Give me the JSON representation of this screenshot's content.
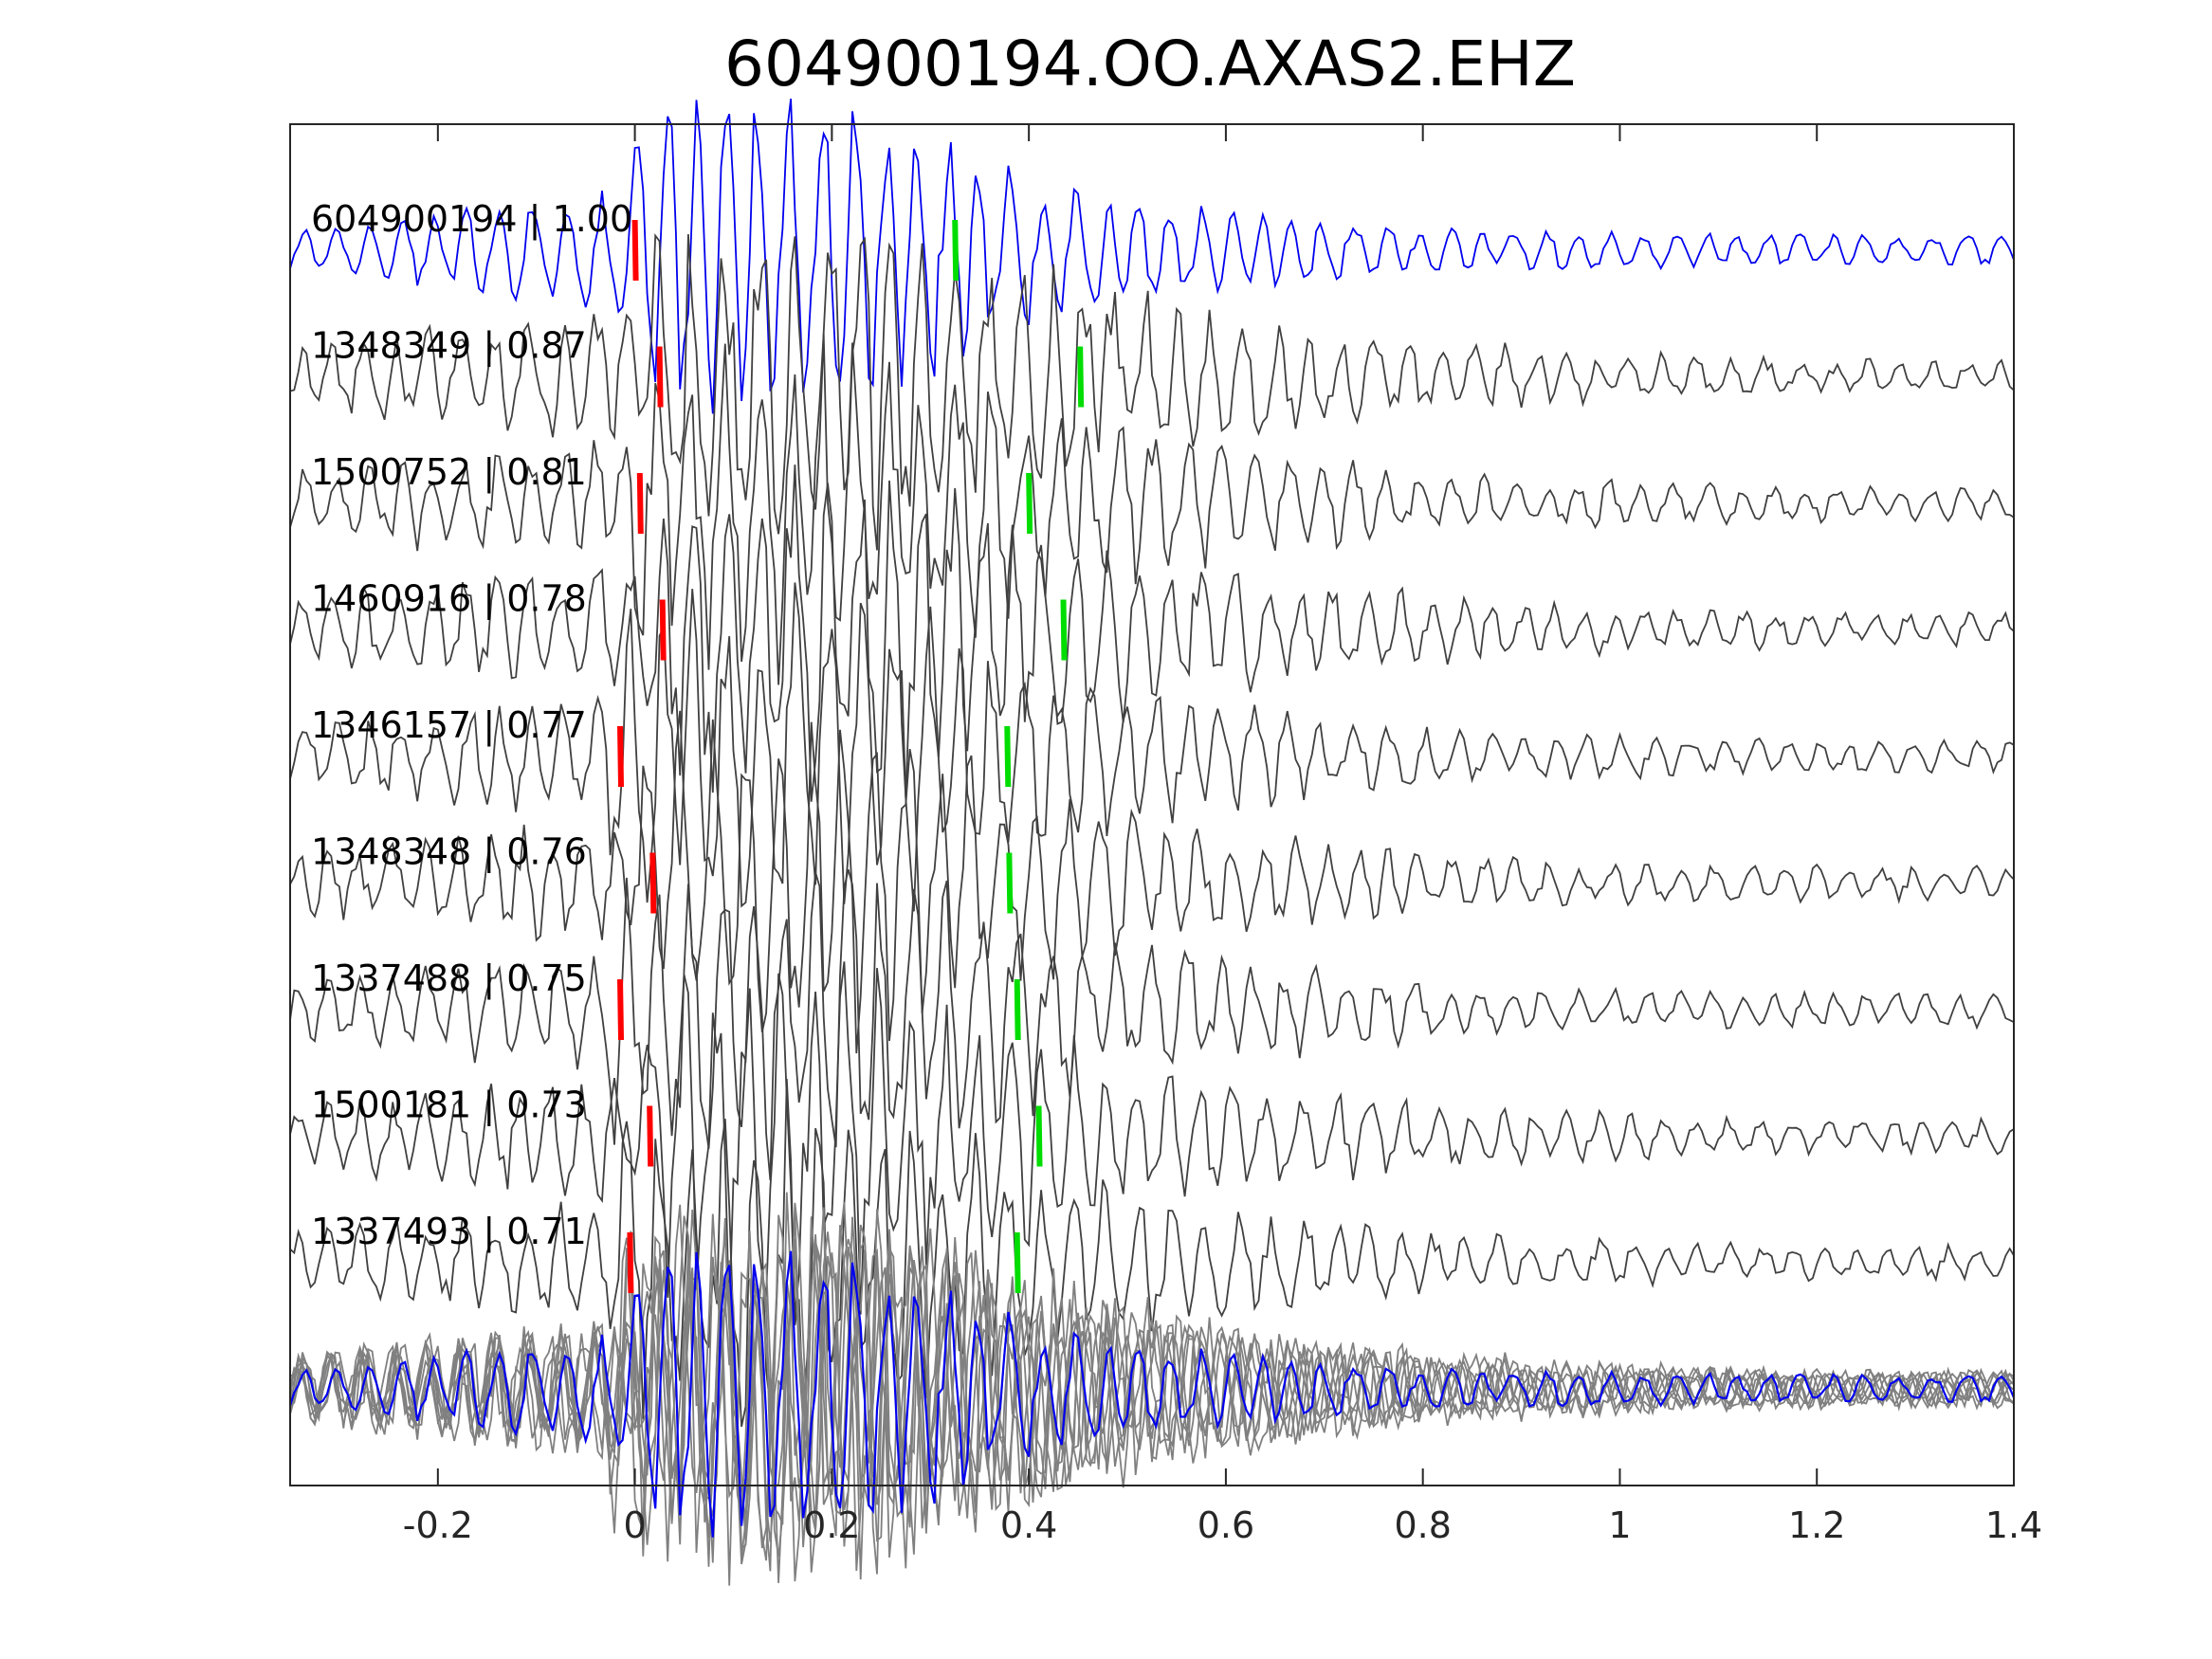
{
  "chart_data": {
    "type": "line",
    "title": "604900194.OO.AXAS2.EHZ",
    "xlabel": "",
    "ylabel": "",
    "xlim": [
      -0.35,
      1.4
    ],
    "xticks": [
      -0.2,
      0,
      0.2,
      0.4,
      0.6,
      0.8,
      1,
      1.2,
      1.4
    ],
    "xtick_labels": [
      "-0.2",
      "0",
      "0.2",
      "0.4",
      "0.6",
      "0.8",
      "1",
      "1.2",
      "1.4"
    ],
    "y_axis_ticks": "none",
    "grid": false,
    "legend": "none",
    "colors": {
      "template_trace": "#0000ee",
      "match_trace": "#404040",
      "stack_trace": "#808080",
      "p_pick": "#ff0000",
      "s_pick": "#00dd00",
      "axes": "#262626"
    },
    "traces": [
      {
        "label": "604900194 | 1.00",
        "event_id": "604900194",
        "correlation": 1.0,
        "p_pick": 0.0,
        "s_pick": 0.325,
        "role": "template"
      },
      {
        "label": "1348349 | 0.87",
        "event_id": "1348349",
        "correlation": 0.87,
        "p_pick": 0.025,
        "s_pick": 0.452,
        "role": "match"
      },
      {
        "label": "1500752 | 0.81",
        "event_id": "1500752",
        "correlation": 0.81,
        "p_pick": 0.005,
        "s_pick": 0.4,
        "role": "match"
      },
      {
        "label": "1460916 | 0.78",
        "event_id": "1460916",
        "correlation": 0.78,
        "p_pick": 0.028,
        "s_pick": 0.435,
        "role": "match"
      },
      {
        "label": "1346157 | 0.77",
        "event_id": "1346157",
        "correlation": 0.77,
        "p_pick": -0.015,
        "s_pick": 0.378,
        "role": "match"
      },
      {
        "label": "1348348 | 0.76",
        "event_id": "1348348",
        "correlation": 0.76,
        "p_pick": 0.018,
        "s_pick": 0.38,
        "role": "match"
      },
      {
        "label": "1337488 | 0.75",
        "event_id": "1337488",
        "correlation": 0.75,
        "p_pick": -0.015,
        "s_pick": 0.388,
        "role": "match"
      },
      {
        "label": "1500181 | 0.73",
        "event_id": "1500181",
        "correlation": 0.73,
        "p_pick": 0.015,
        "s_pick": 0.41,
        "role": "match"
      },
      {
        "label": "1337493 | 0.71",
        "event_id": "1337493",
        "correlation": 0.71,
        "p_pick": -0.005,
        "s_pick": 0.388,
        "role": "match"
      }
    ],
    "stack": {
      "description_shown": false,
      "role": "overlay of all aligned traces with template"
    }
  }
}
